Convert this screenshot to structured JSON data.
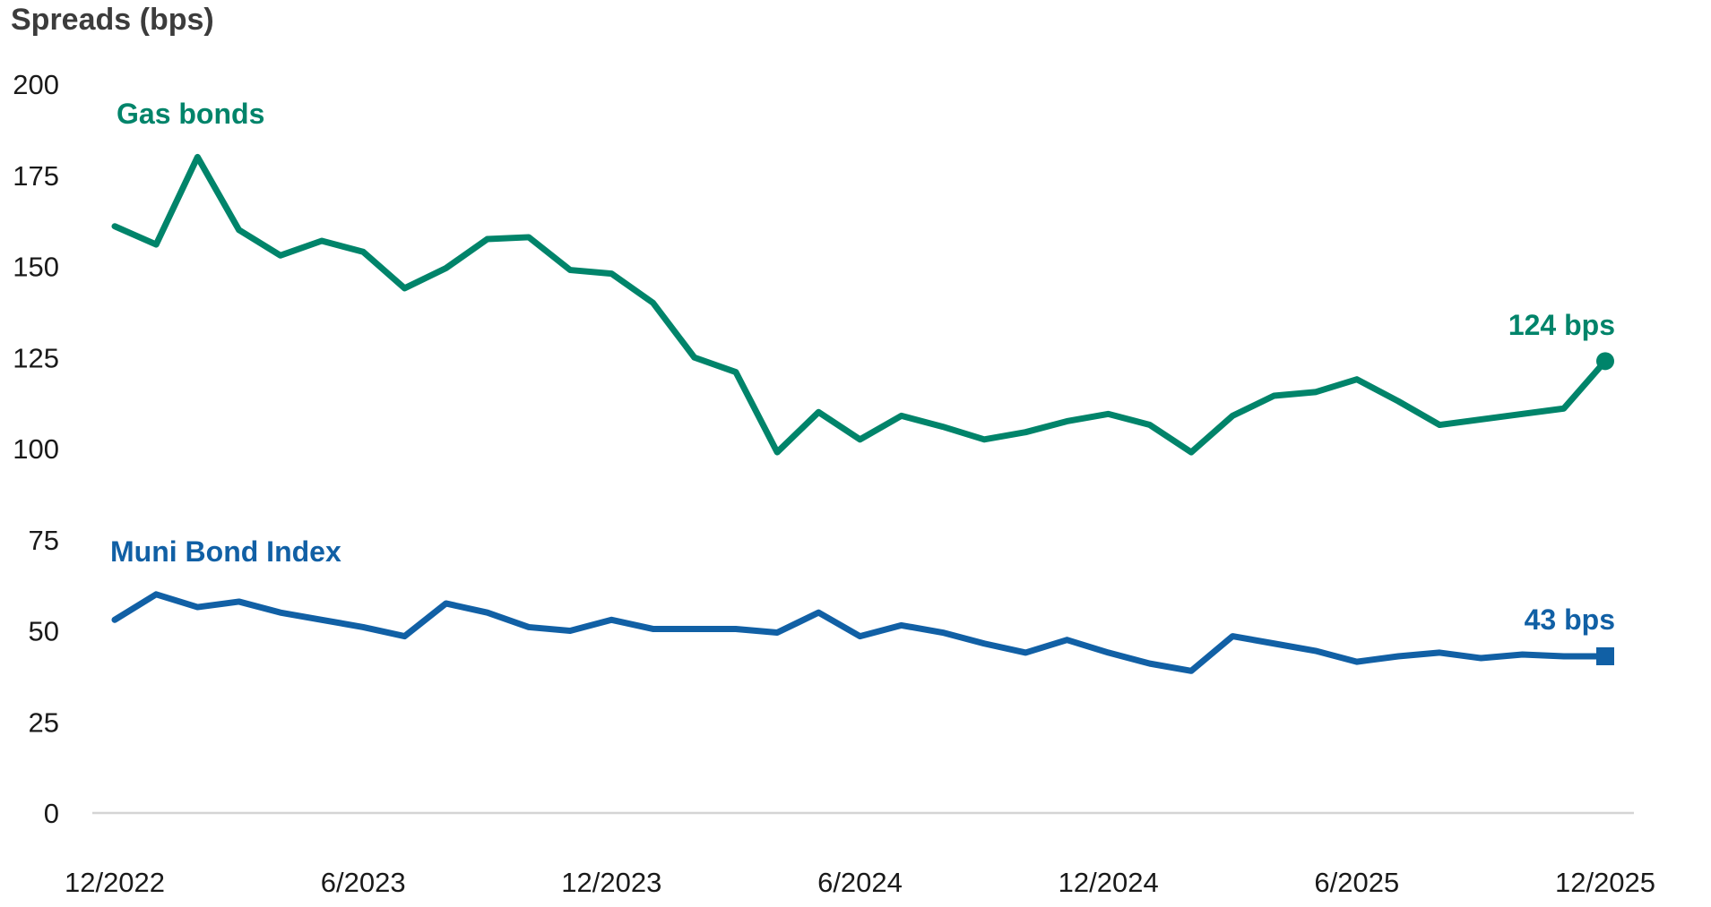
{
  "title": "Spreads (bps)",
  "colors": {
    "gas_bonds": "#00846A",
    "muni_bond_index": "#1160A5",
    "title_text": "#3C3C3C",
    "axis_text": "#1A1A1A",
    "axis_line": "#D4D4D4"
  },
  "chart_data": {
    "type": "line",
    "title": "Spreads (bps)",
    "xlabel": "",
    "ylabel": "Spreads (bps)",
    "ylim": [
      0,
      200
    ],
    "y_ticks": [
      200,
      175,
      150,
      125,
      100,
      75,
      50,
      25,
      0
    ],
    "x_tick_labels": [
      "12/2022",
      "6/2023",
      "12/2023",
      "6/2024",
      "12/2024",
      "6/2025",
      "12/2025"
    ],
    "x_tick_month_index": [
      0,
      6,
      12,
      18,
      24,
      30,
      36
    ],
    "x_start": "12/2022",
    "x_end": "12/2025",
    "x_step": "1 month",
    "grid": false,
    "legend_position": "inline-labels",
    "series": [
      {
        "name": "Gas bonds",
        "color": "#00846A",
        "end_label": "124 bps",
        "end_value": 124,
        "end_marker": "circle",
        "values": [
          161,
          156,
          180,
          160,
          153,
          157,
          154,
          144,
          149.5,
          157.5,
          158,
          149,
          148,
          140,
          125,
          121,
          99,
          110,
          102.5,
          109,
          106,
          102.5,
          104.5,
          107.5,
          109.5,
          106.5,
          99,
          109,
          114.5,
          115.5,
          119,
          113,
          106.5,
          108,
          109.5,
          111,
          124
        ]
      },
      {
        "name": "Muni Bond Index",
        "color": "#1160A5",
        "end_label": "43 bps",
        "end_value": 43,
        "end_marker": "square",
        "values": [
          53,
          60,
          56.5,
          58,
          55,
          53,
          51,
          48.5,
          57.5,
          55,
          51,
          50,
          53,
          50.5,
          50.5,
          50.5,
          49.5,
          55,
          48.5,
          51.5,
          49.5,
          46.5,
          44,
          47.5,
          44,
          41,
          39,
          48.5,
          46.5,
          44.5,
          41.5,
          43,
          44,
          42.5,
          43.5,
          43,
          43
        ]
      }
    ]
  }
}
